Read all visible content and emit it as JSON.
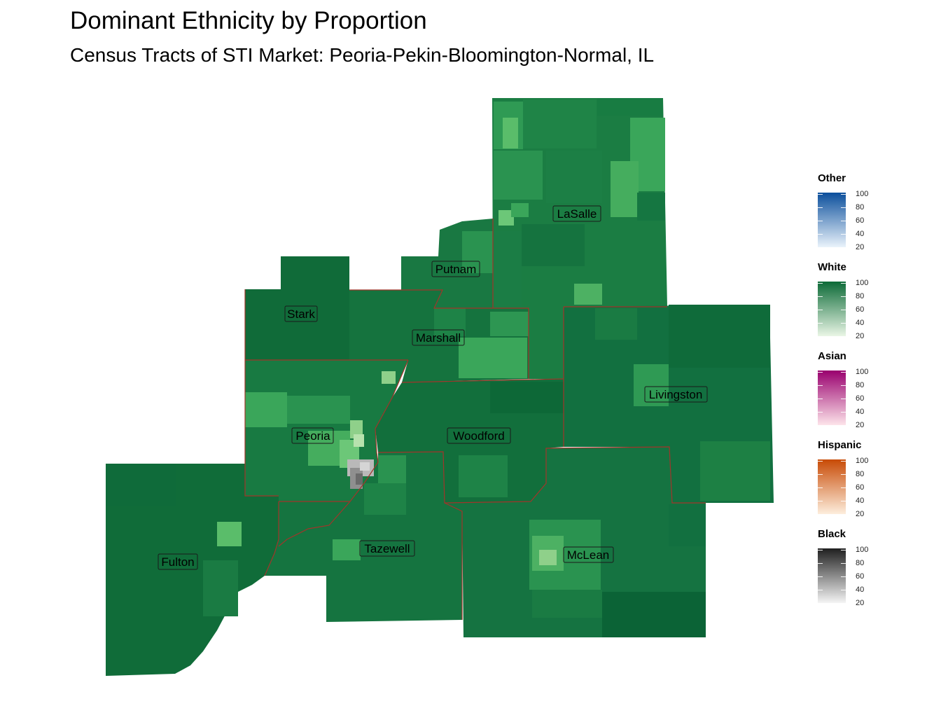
{
  "title": "Dominant Ethnicity by Proportion",
  "subtitle": "Census Tracts of STI Market: Peoria-Pekin-Bloomington-Normal, IL",
  "counties": [
    {
      "name": "LaSalle"
    },
    {
      "name": "Putnam"
    },
    {
      "name": "Stark"
    },
    {
      "name": "Marshall"
    },
    {
      "name": "Livingston"
    },
    {
      "name": "Peoria"
    },
    {
      "name": "Woodford"
    },
    {
      "name": "Tazewell"
    },
    {
      "name": "Fulton"
    },
    {
      "name": "McLean"
    }
  ],
  "legend": [
    {
      "title": "Other",
      "colors": [
        "#eaf3fb",
        "#0b4f9c"
      ],
      "labels": [
        "100",
        "80",
        "60",
        "40",
        "20"
      ]
    },
    {
      "title": "White",
      "colors": [
        "#eaf6e6",
        "#0c6a37"
      ],
      "labels": [
        "100",
        "80",
        "60",
        "40",
        "20"
      ]
    },
    {
      "title": "Asian",
      "colors": [
        "#fde4ea",
        "#99006e"
      ],
      "labels": [
        "100",
        "80",
        "60",
        "40",
        "20"
      ]
    },
    {
      "title": "Hispanic",
      "colors": [
        "#fdeedd",
        "#c84a05"
      ],
      "labels": [
        "100",
        "80",
        "60",
        "40",
        "20"
      ]
    },
    {
      "title": "Black",
      "colors": [
        "#f5f5f5",
        "#1f1f1f"
      ],
      "labels": [
        "100",
        "80",
        "60",
        "40",
        "20"
      ]
    }
  ],
  "colors": {
    "white_dark": "#0f6b3a",
    "white_mid": "#1e8445",
    "white_light": "#3ba558",
    "white_pale": "#8fd08a",
    "black_tracts": "#b5b5b5",
    "county_border": "#a0352a"
  }
}
